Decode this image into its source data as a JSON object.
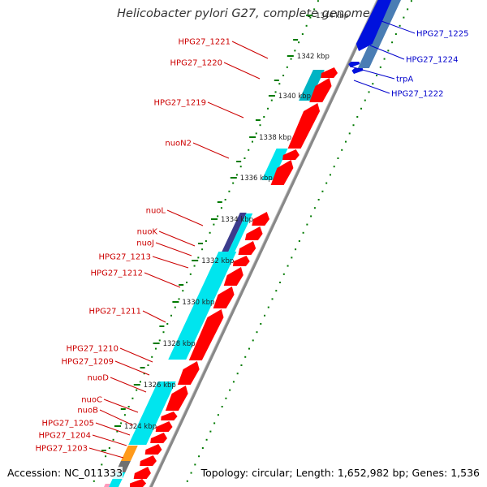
{
  "title": "Helicobacter pylori G27, complete genome",
  "accession": "Accession: NC_011333",
  "summary": "Topology: circular; Length: 1,652,982 bp; Genes: 1,536",
  "colors": {
    "forward_label": "#cc0000",
    "reverse_label": "#0000cc",
    "forward_gene": "#ff0000",
    "cyan_track": "#00e5ee",
    "teal_track": "#00b4c4",
    "navy_track": "#3c3c8c",
    "orange_track": "#ff9a1a",
    "gray_track": "#707070",
    "blue_gene": "#0011dd",
    "steel_blue": "#4a7db4",
    "ticks": "#007a00",
    "backbone": "#888888"
  },
  "ticks": [
    {
      "label": "1324 kbp"
    },
    {
      "label": "1326 kbp"
    },
    {
      "label": "1328 kbp"
    },
    {
      "label": "1330 kbp"
    },
    {
      "label": "1332 kbp"
    },
    {
      "label": "1334 kbp"
    },
    {
      "label": "1336 kbp"
    },
    {
      "label": "1338 kbp"
    },
    {
      "label": "1340 kbp"
    },
    {
      "label": "1342 kbp"
    },
    {
      "label": "1344 kbp"
    }
  ],
  "forward_genes": [
    {
      "label": "HPG27_1221"
    },
    {
      "label": "HPG27_1220"
    },
    {
      "label": "HPG27_1219"
    },
    {
      "label": "nuoN2"
    },
    {
      "label": "nuoL"
    },
    {
      "label": "nuoK"
    },
    {
      "label": "nuoJ"
    },
    {
      "label": "HPG27_1213"
    },
    {
      "label": "HPG27_1212"
    },
    {
      "label": "HPG27_1211"
    },
    {
      "label": "HPG27_1210"
    },
    {
      "label": "HPG27_1209"
    },
    {
      "label": "nuoD"
    },
    {
      "label": "nuoC"
    },
    {
      "label": "nuoB"
    },
    {
      "label": "HPG27_1205"
    },
    {
      "label": "HPG27_1204"
    },
    {
      "label": "HPG27_1203"
    }
  ],
  "reverse_genes": [
    {
      "label": "HPG27_1225"
    },
    {
      "label": "HPG27_1224"
    },
    {
      "label": "trpA"
    },
    {
      "label": "HPG27_1222"
    }
  ]
}
